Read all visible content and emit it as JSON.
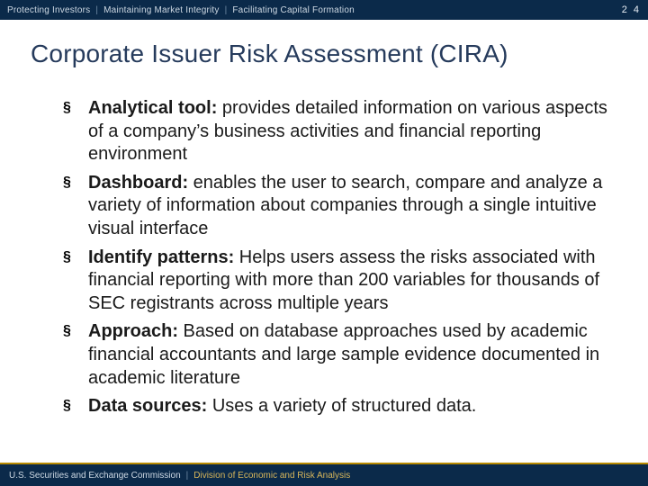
{
  "colors": {
    "header_bg": "#0b2a4a",
    "title_color": "#263b5c",
    "footer_accent": "#b88a00",
    "body_text": "#1a1a1a",
    "background": "#ffffff"
  },
  "page_number": "2 4",
  "header": {
    "tagline_parts": [
      "Protecting Investors",
      "Maintaining Market Integrity",
      "Facilitating Capital Formation"
    ]
  },
  "title": "Corporate Issuer Risk Assessment (CIRA)",
  "bullets": [
    {
      "lead": "Analytical tool:",
      "text": " provides detailed information on various aspects of a company’s business activities and financial reporting environment"
    },
    {
      "lead": "Dashboard:",
      "text": " enables the user to search, compare and analyze a variety of information about companies through a single intuitive visual interface"
    },
    {
      "lead": "Identify patterns:",
      "text": " Helps users assess the risks associated with financial reporting with more than 200 variables for thousands of SEC registrants across multiple years"
    },
    {
      "lead": "Approach:",
      "text": " Based on database approaches used by academic financial accountants and large sample evidence documented in academic literature"
    },
    {
      "lead": "Data sources:",
      "text": " Uses a variety of structured data."
    }
  ],
  "footer": {
    "org": "U.S. Securities and Exchange Commission",
    "division": "Division of Economic and Risk Analysis"
  }
}
